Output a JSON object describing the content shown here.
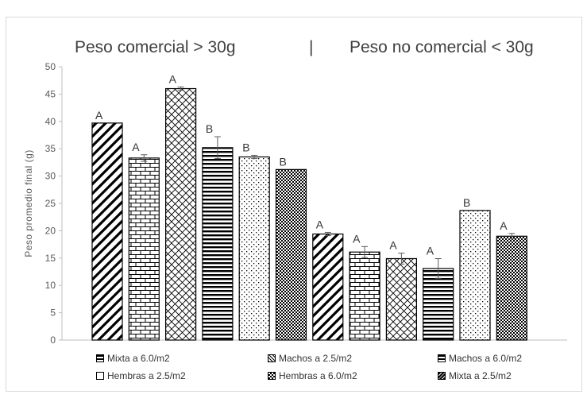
{
  "headings": {
    "left": "Peso comercial > 30g",
    "divider": "|",
    "right": "Peso no comercial < 30g"
  },
  "legend": {
    "items": [
      {
        "label": "Mixta a 6.0/m2",
        "pattern": "p-hlines-swatch"
      },
      {
        "label": "Machos a 2.5/m2",
        "pattern": "p-diag-swatch"
      },
      {
        "label": "Machos a 6.0/m2",
        "pattern": "p-hlines-swatch"
      },
      {
        "label": "Hembras a 2.5/m2",
        "pattern": "p-dots-swatch"
      },
      {
        "label": "Hembras a 6.0/m2",
        "pattern": "p-check-swatch"
      },
      {
        "label": "Mixta a 2.5/m2",
        "pattern": "p-diag-swatch"
      }
    ]
  },
  "chart_data": {
    "type": "bar",
    "ylabel": "Peso promedio final (g)",
    "ylim": [
      0,
      50
    ],
    "yticks": [
      0,
      5,
      10,
      15,
      20,
      25,
      30,
      35,
      40,
      45,
      50
    ],
    "grid": false,
    "legend_position": "bottom",
    "groups": [
      "Peso comercial > 30g",
      "Peso no comercial < 30g"
    ],
    "bars": [
      {
        "group": 0,
        "value": 39.7,
        "error": 0.0,
        "letter": "A",
        "pattern": "diag"
      },
      {
        "group": 0,
        "value": 33.3,
        "error": 0.6,
        "letter": "A",
        "pattern": "brick"
      },
      {
        "group": 0,
        "value": 46.0,
        "error": 0.3,
        "letter": "A",
        "pattern": "cross"
      },
      {
        "group": 0,
        "value": 35.2,
        "error": 2.0,
        "letter": "B",
        "pattern": "hlines"
      },
      {
        "group": 0,
        "value": 33.5,
        "error": 0.3,
        "letter": "B",
        "pattern": "dots"
      },
      {
        "group": 0,
        "value": 31.2,
        "error": 0.0,
        "letter": "B",
        "pattern": "check"
      },
      {
        "group": 1,
        "value": 19.4,
        "error": 0.3,
        "letter": "A",
        "pattern": "diag"
      },
      {
        "group": 1,
        "value": 16.1,
        "error": 1.0,
        "letter": "A",
        "pattern": "brick"
      },
      {
        "group": 1,
        "value": 14.9,
        "error": 1.0,
        "letter": "A",
        "pattern": "cross"
      },
      {
        "group": 1,
        "value": 13.1,
        "error": 1.8,
        "letter": "A",
        "pattern": "hlines"
      },
      {
        "group": 1,
        "value": 23.7,
        "error": 0.0,
        "letter": "B",
        "pattern": "dots"
      },
      {
        "group": 1,
        "value": 19.0,
        "error": 0.5,
        "letter": "A",
        "pattern": "check"
      }
    ]
  }
}
